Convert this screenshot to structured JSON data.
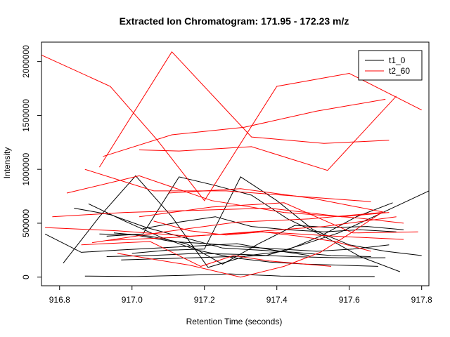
{
  "chart_data": {
    "type": "line",
    "title": "Extracted Ion Chromatogram: 171.95 - 172.23 m/z",
    "xlabel": "Retention Time (seconds)",
    "ylabel": "Intensity",
    "xlim": [
      916.75,
      917.82
    ],
    "ylim": [
      -80000,
      2180000
    ],
    "x_ticks": [
      916.8,
      917.0,
      917.2,
      917.4,
      917.6,
      917.8
    ],
    "x_tick_labels": [
      "916.8",
      "917.0",
      "917.2",
      "917.4",
      "917.6",
      "917.8"
    ],
    "y_ticks": [
      0,
      500000,
      1000000,
      1500000,
      2000000
    ],
    "y_tick_labels": [
      "0",
      "500000",
      "1000000",
      "1500000",
      "2000000"
    ],
    "grid": false,
    "legend_position": "top-right",
    "legend": [
      {
        "label": "t1_0",
        "color": "#000000"
      },
      {
        "label": "t2_60",
        "color": "#ff0000"
      }
    ],
    "series": [
      {
        "name": "t1_0",
        "color": "#000000",
        "lines": [
          [
            [
              916.76,
              400000
            ],
            [
              916.86,
              230000
            ],
            [
              916.96,
              250000
            ],
            [
              917.07,
              270000
            ],
            [
              917.18,
              290000
            ],
            [
              917.29,
              310000
            ],
            [
              917.39,
              250000
            ],
            [
              917.49,
              200000
            ]
          ],
          [
            [
              916.81,
              130000
            ],
            [
              916.91,
              560000
            ],
            [
              917.01,
              940000
            ],
            [
              917.11,
              560000
            ],
            [
              917.21,
              90000
            ],
            [
              917.32,
              200000
            ],
            [
              917.42,
              240000
            ],
            [
              917.52,
              380000
            ],
            [
              917.62,
              560000
            ],
            [
              917.72,
              690000
            ]
          ],
          [
            [
              916.84,
              640000
            ],
            [
              916.94,
              580000
            ],
            [
              917.04,
              460000
            ],
            [
              917.14,
              370000
            ],
            [
              917.25,
              270000
            ],
            [
              917.35,
              250000
            ],
            [
              917.45,
              230000
            ],
            [
              917.55,
              200000
            ],
            [
              917.66,
              190000
            ]
          ],
          [
            [
              916.88,
              680000
            ],
            [
              916.98,
              520000
            ],
            [
              917.08,
              370000
            ],
            [
              917.18,
              250000
            ],
            [
              917.28,
              180000
            ],
            [
              917.38,
              140000
            ],
            [
              917.48,
              120000
            ],
            [
              917.58,
              110000
            ],
            [
              917.68,
              100000
            ]
          ],
          [
            [
              916.91,
              400000
            ],
            [
              917.01,
              390000
            ],
            [
              917.11,
              330000
            ],
            [
              917.21,
              310000
            ],
            [
              917.31,
              280000
            ],
            [
              917.41,
              260000
            ],
            [
              917.51,
              240000
            ],
            [
              917.61,
              260000
            ],
            [
              917.71,
              300000
            ]
          ],
          [
            [
              916.93,
              380000
            ],
            [
              917.03,
              400000
            ],
            [
              917.13,
              930000
            ],
            [
              917.23,
              850000
            ],
            [
              917.33,
              760000
            ],
            [
              917.43,
              540000
            ],
            [
              917.53,
              380000
            ],
            [
              917.63,
              190000
            ],
            [
              917.74,
              50000
            ]
          ],
          [
            [
              916.95,
              410000
            ],
            [
              917.05,
              380000
            ],
            [
              917.15,
              310000
            ],
            [
              917.25,
              120000
            ],
            [
              917.35,
              310000
            ],
            [
              917.45,
              480000
            ],
            [
              917.55,
              460000
            ],
            [
              917.65,
              470000
            ],
            [
              917.75,
              440000
            ]
          ],
          [
            [
              916.97,
              160000
            ],
            [
              917.07,
              170000
            ],
            [
              917.17,
              180000
            ],
            [
              917.27,
              190000
            ],
            [
              917.37,
              200000
            ],
            [
              917.47,
              300000
            ],
            [
              917.57,
              410000
            ],
            [
              917.68,
              580000
            ],
            [
              917.82,
              800000
            ]
          ],
          [
            [
              917.0,
              220000
            ],
            [
              917.1,
              250000
            ],
            [
              917.2,
              260000
            ],
            [
              917.3,
              930000
            ],
            [
              917.4,
              710000
            ],
            [
              917.5,
              440000
            ],
            [
              917.6,
              300000
            ],
            [
              917.7,
              240000
            ],
            [
              917.8,
              200000
            ]
          ],
          [
            [
              917.03,
              450000
            ],
            [
              917.13,
              510000
            ],
            [
              917.23,
              560000
            ],
            [
              917.33,
              470000
            ],
            [
              917.43,
              440000
            ],
            [
              917.53,
              420000
            ],
            [
              917.63,
              440000
            ],
            [
              917.73,
              420000
            ]
          ],
          [
            [
              916.87,
              10000
            ],
            [
              917.01,
              5000
            ],
            [
              917.13,
              15000
            ],
            [
              917.27,
              30000
            ],
            [
              917.41,
              10000
            ],
            [
              917.55,
              5000
            ],
            [
              917.67,
              5000
            ]
          ],
          [
            [
              916.93,
              190000
            ],
            [
              917.05,
              200000
            ],
            [
              917.18,
              220000
            ],
            [
              917.31,
              210000
            ],
            [
              917.44,
              190000
            ],
            [
              917.57,
              180000
            ],
            [
              917.7,
              180000
            ]
          ]
        ]
      },
      {
        "name": "t2_60",
        "color": "#ff0000",
        "lines": [
          [
            [
              916.75,
              2060000
            ],
            [
              916.94,
              1770000
            ],
            [
              917.07,
              1270000
            ],
            [
              917.2,
              710000
            ],
            [
              917.4,
              1770000
            ],
            [
              917.6,
              1890000
            ],
            [
              917.8,
              1550000
            ]
          ],
          [
            [
              916.91,
              1020000
            ],
            [
              917.11,
              2090000
            ],
            [
              917.33,
              1300000
            ],
            [
              917.53,
              1240000
            ],
            [
              917.71,
              1270000
            ]
          ],
          [
            [
              916.92,
              1120000
            ],
            [
              917.11,
              1320000
            ],
            [
              917.31,
              1390000
            ],
            [
              917.51,
              1540000
            ],
            [
              917.7,
              1650000
            ]
          ],
          [
            [
              917.02,
              1180000
            ],
            [
              917.13,
              1170000
            ],
            [
              917.33,
              1210000
            ],
            [
              917.54,
              990000
            ],
            [
              917.73,
              1680000
            ]
          ],
          [
            [
              916.82,
              780000
            ],
            [
              917.02,
              940000
            ],
            [
              917.22,
              710000
            ],
            [
              917.42,
              600000
            ],
            [
              917.62,
              550000
            ],
            [
              917.75,
              500000
            ]
          ],
          [
            [
              916.87,
              1000000
            ],
            [
              917.06,
              800000
            ],
            [
              917.26,
              800000
            ],
            [
              917.46,
              750000
            ],
            [
              917.66,
              700000
            ]
          ],
          [
            [
              916.76,
              460000
            ],
            [
              916.96,
              430000
            ],
            [
              917.16,
              380000
            ],
            [
              917.36,
              420000
            ],
            [
              917.56,
              380000
            ],
            [
              917.75,
              350000
            ]
          ],
          [
            [
              916.78,
              560000
            ],
            [
              916.98,
              600000
            ],
            [
              917.18,
              620000
            ],
            [
              917.38,
              640000
            ],
            [
              917.58,
              560000
            ],
            [
              917.71,
              600000
            ]
          ],
          [
            [
              916.89,
              320000
            ],
            [
              917.09,
              420000
            ],
            [
              917.29,
              510000
            ],
            [
              917.49,
              540000
            ],
            [
              917.69,
              600000
            ]
          ],
          [
            [
              916.93,
              340000
            ],
            [
              917.13,
              370000
            ],
            [
              917.33,
              420000
            ],
            [
              917.53,
              470000
            ],
            [
              917.73,
              560000
            ]
          ],
          [
            [
              917.02,
              560000
            ],
            [
              917.22,
              650000
            ],
            [
              917.42,
              690000
            ],
            [
              917.61,
              410000
            ],
            [
              917.79,
              420000
            ]
          ],
          [
            [
              916.86,
              300000
            ],
            [
              917.05,
              330000
            ],
            [
              917.19,
              100000
            ],
            [
              917.28,
              200000
            ],
            [
              917.38,
              150000
            ],
            [
              917.48,
              120000
            ],
            [
              917.55,
              100000
            ]
          ],
          [
            [
              916.96,
              220000
            ],
            [
              917.16,
              110000
            ],
            [
              917.3,
              0
            ],
            [
              917.42,
              100000
            ],
            [
              917.52,
              230000
            ],
            [
              917.6,
              400000
            ],
            [
              917.69,
              600000
            ]
          ],
          [
            [
              917.06,
              520000
            ],
            [
              917.16,
              430000
            ],
            [
              917.26,
              390000
            ],
            [
              917.36,
              420000
            ],
            [
              917.46,
              380000
            ],
            [
              917.56,
              330000
            ],
            [
              917.66,
              240000
            ]
          ],
          [
            [
              917.1,
              780000
            ],
            [
              917.3,
              820000
            ],
            [
              917.5,
              730000
            ],
            [
              917.7,
              600000
            ]
          ]
        ]
      }
    ]
  }
}
